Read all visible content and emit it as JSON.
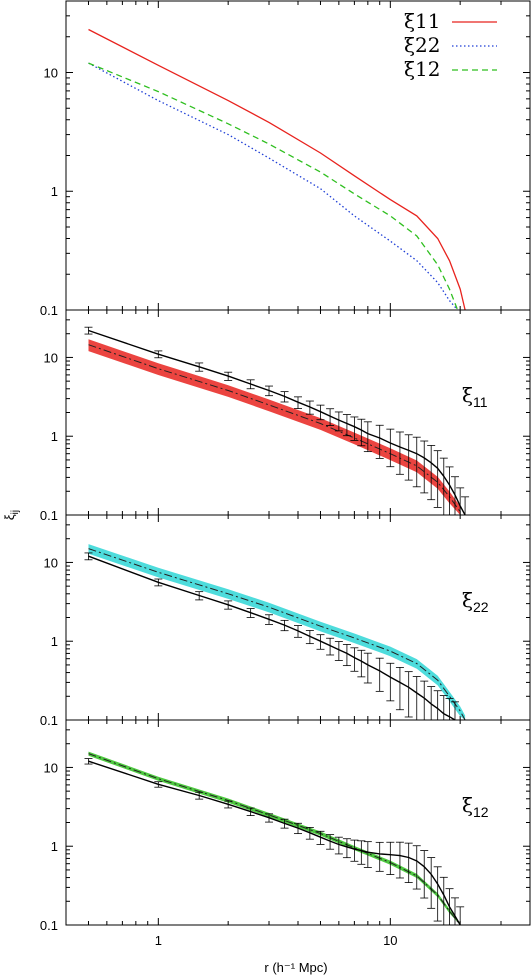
{
  "chart_data": [
    {
      "type": "line",
      "panel": "top",
      "xscale": "log",
      "yscale": "log",
      "xlim": [
        0.4,
        40
      ],
      "ylim": [
        0.1,
        40
      ],
      "yticks": [
        "0.1",
        "1",
        "10"
      ],
      "legend_position": "top-right",
      "series": [
        {
          "name": "ξ11",
          "color": "#e8231e",
          "dash": "solid",
          "x": [
            0.5,
            1,
            2,
            3,
            5,
            7,
            10,
            13,
            16,
            18,
            20,
            21
          ],
          "y": [
            23,
            11.5,
            5.8,
            3.8,
            2.1,
            1.35,
            0.85,
            0.62,
            0.4,
            0.26,
            0.15,
            0.1
          ]
        },
        {
          "name": "ξ22",
          "color": "#1f3fd6",
          "dash": "dotted",
          "x": [
            0.5,
            1,
            2,
            3,
            5,
            7,
            10,
            13,
            16,
            18,
            19.5
          ],
          "y": [
            12,
            5.8,
            3.0,
            1.9,
            1.05,
            0.62,
            0.38,
            0.26,
            0.17,
            0.12,
            0.1
          ]
        },
        {
          "name": "ξ12",
          "color": "#2fbf1f",
          "dash": "dashed",
          "x": [
            0.5,
            1,
            2,
            3,
            5,
            7,
            10,
            13,
            16,
            18,
            19.5
          ],
          "y": [
            12,
            6.9,
            3.7,
            2.5,
            1.45,
            0.95,
            0.62,
            0.42,
            0.24,
            0.15,
            0.1
          ]
        }
      ]
    },
    {
      "type": "line",
      "panel": "xi11",
      "label": "ξ",
      "label_sub": "11",
      "xscale": "log",
      "yscale": "log",
      "xlim": [
        0.4,
        40
      ],
      "ylim": [
        0.1,
        40
      ],
      "yticks": [
        "0.1",
        "1",
        "10"
      ],
      "band_color": "#e8231e",
      "model": {
        "x": [
          0.5,
          1,
          2,
          3,
          5,
          7,
          10,
          13,
          16,
          18,
          20
        ],
        "y": [
          14.5,
          7.2,
          3.8,
          2.5,
          1.45,
          0.95,
          0.6,
          0.42,
          0.26,
          0.17,
          0.11
        ],
        "band_frac": 0.17
      },
      "measured": {
        "x": [
          0.5,
          1,
          1.5,
          2,
          2.5,
          3,
          3.5,
          4,
          4.5,
          5,
          5.5,
          6,
          6.5,
          7,
          7.5,
          8,
          9,
          10,
          11,
          12,
          13,
          14,
          15,
          16,
          17,
          18,
          19,
          20,
          21
        ],
        "y": [
          22,
          11,
          7.6,
          5.8,
          4.6,
          3.8,
          3.2,
          2.7,
          2.35,
          2.05,
          1.8,
          1.6,
          1.45,
          1.32,
          1.2,
          1.08,
          0.95,
          0.82,
          0.73,
          0.66,
          0.6,
          0.53,
          0.46,
          0.39,
          0.31,
          0.24,
          0.18,
          0.13,
          0.1
        ],
        "err_frac": [
          0.1,
          0.1,
          0.12,
          0.12,
          0.13,
          0.14,
          0.15,
          0.17,
          0.19,
          0.21,
          0.24,
          0.27,
          0.3,
          0.33,
          0.37,
          0.41,
          0.45,
          0.5,
          0.55,
          0.58,
          0.62,
          0.64,
          0.66,
          0.68,
          0.7,
          0.7,
          0.7,
          0.7,
          0.7
        ]
      }
    },
    {
      "type": "line",
      "panel": "xi22",
      "label": "ξ",
      "label_sub": "22",
      "ylabel": "ξij",
      "xscale": "log",
      "yscale": "log",
      "xlim": [
        0.4,
        40
      ],
      "ylim": [
        0.1,
        40
      ],
      "yticks": [
        "0.1",
        "1",
        "10"
      ],
      "band_color": "#2fd6d6",
      "model": {
        "x": [
          0.5,
          1,
          2,
          3,
          5,
          7,
          10,
          13,
          16,
          18,
          20,
          21
        ],
        "y": [
          15,
          7.5,
          4.0,
          2.7,
          1.55,
          1.1,
          0.75,
          0.52,
          0.32,
          0.2,
          0.13,
          0.1
        ],
        "band_frac": 0.14
      },
      "measured": {
        "x": [
          0.5,
          1,
          1.5,
          2,
          2.5,
          3,
          3.5,
          4,
          4.5,
          5,
          5.5,
          6,
          6.5,
          7,
          7.5,
          8,
          9,
          10,
          11,
          12,
          13,
          14,
          15,
          16,
          17,
          18,
          19
        ],
        "y": [
          12,
          5.6,
          3.8,
          2.9,
          2.3,
          1.9,
          1.6,
          1.35,
          1.15,
          1.0,
          0.88,
          0.78,
          0.7,
          0.62,
          0.56,
          0.5,
          0.42,
          0.35,
          0.3,
          0.26,
          0.22,
          0.19,
          0.16,
          0.14,
          0.12,
          0.11,
          0.1
        ],
        "err_frac": [
          0.1,
          0.1,
          0.12,
          0.12,
          0.13,
          0.14,
          0.15,
          0.17,
          0.19,
          0.21,
          0.24,
          0.27,
          0.3,
          0.33,
          0.37,
          0.41,
          0.45,
          0.5,
          0.55,
          0.58,
          0.62,
          0.64,
          0.66,
          0.68,
          0.7,
          0.7,
          0.7
        ]
      }
    },
    {
      "type": "line",
      "panel": "xi12",
      "label": "ξ",
      "label_sub": "12",
      "xlabel": "r (h⁻¹ Mpc)",
      "xticks": [
        "1",
        "10"
      ],
      "xscale": "log",
      "yscale": "log",
      "xlim": [
        0.4,
        40
      ],
      "ylim": [
        0.1,
        40
      ],
      "yticks": [
        "0.1",
        "1",
        "10"
      ],
      "band_color": "#2fbf1f",
      "model": {
        "x": [
          0.5,
          1,
          2,
          3,
          5,
          7,
          10,
          13,
          16,
          18,
          20
        ],
        "y": [
          15,
          7.2,
          3.8,
          2.5,
          1.45,
          0.95,
          0.62,
          0.42,
          0.24,
          0.15,
          0.1
        ],
        "band_frac": 0.06
      },
      "measured": {
        "x": [
          0.5,
          1,
          1.5,
          2,
          2.5,
          3,
          3.5,
          4,
          4.5,
          5,
          5.5,
          6,
          6.5,
          7,
          7.5,
          8,
          9,
          10,
          11,
          12,
          13,
          14,
          15,
          16,
          17,
          18,
          19,
          20
        ],
        "y": [
          12,
          6.1,
          4.4,
          3.4,
          2.75,
          2.3,
          1.95,
          1.7,
          1.48,
          1.3,
          1.16,
          1.05,
          0.98,
          0.92,
          0.88,
          0.84,
          0.8,
          0.78,
          0.76,
          0.72,
          0.65,
          0.55,
          0.44,
          0.33,
          0.24,
          0.17,
          0.13,
          0.1
        ],
        "err_frac": [
          0.08,
          0.08,
          0.1,
          0.1,
          0.11,
          0.12,
          0.13,
          0.15,
          0.17,
          0.19,
          0.21,
          0.24,
          0.27,
          0.3,
          0.33,
          0.36,
          0.4,
          0.44,
          0.48,
          0.52,
          0.56,
          0.6,
          0.63,
          0.66,
          0.68,
          0.7,
          0.7,
          0.7
        ]
      }
    }
  ]
}
